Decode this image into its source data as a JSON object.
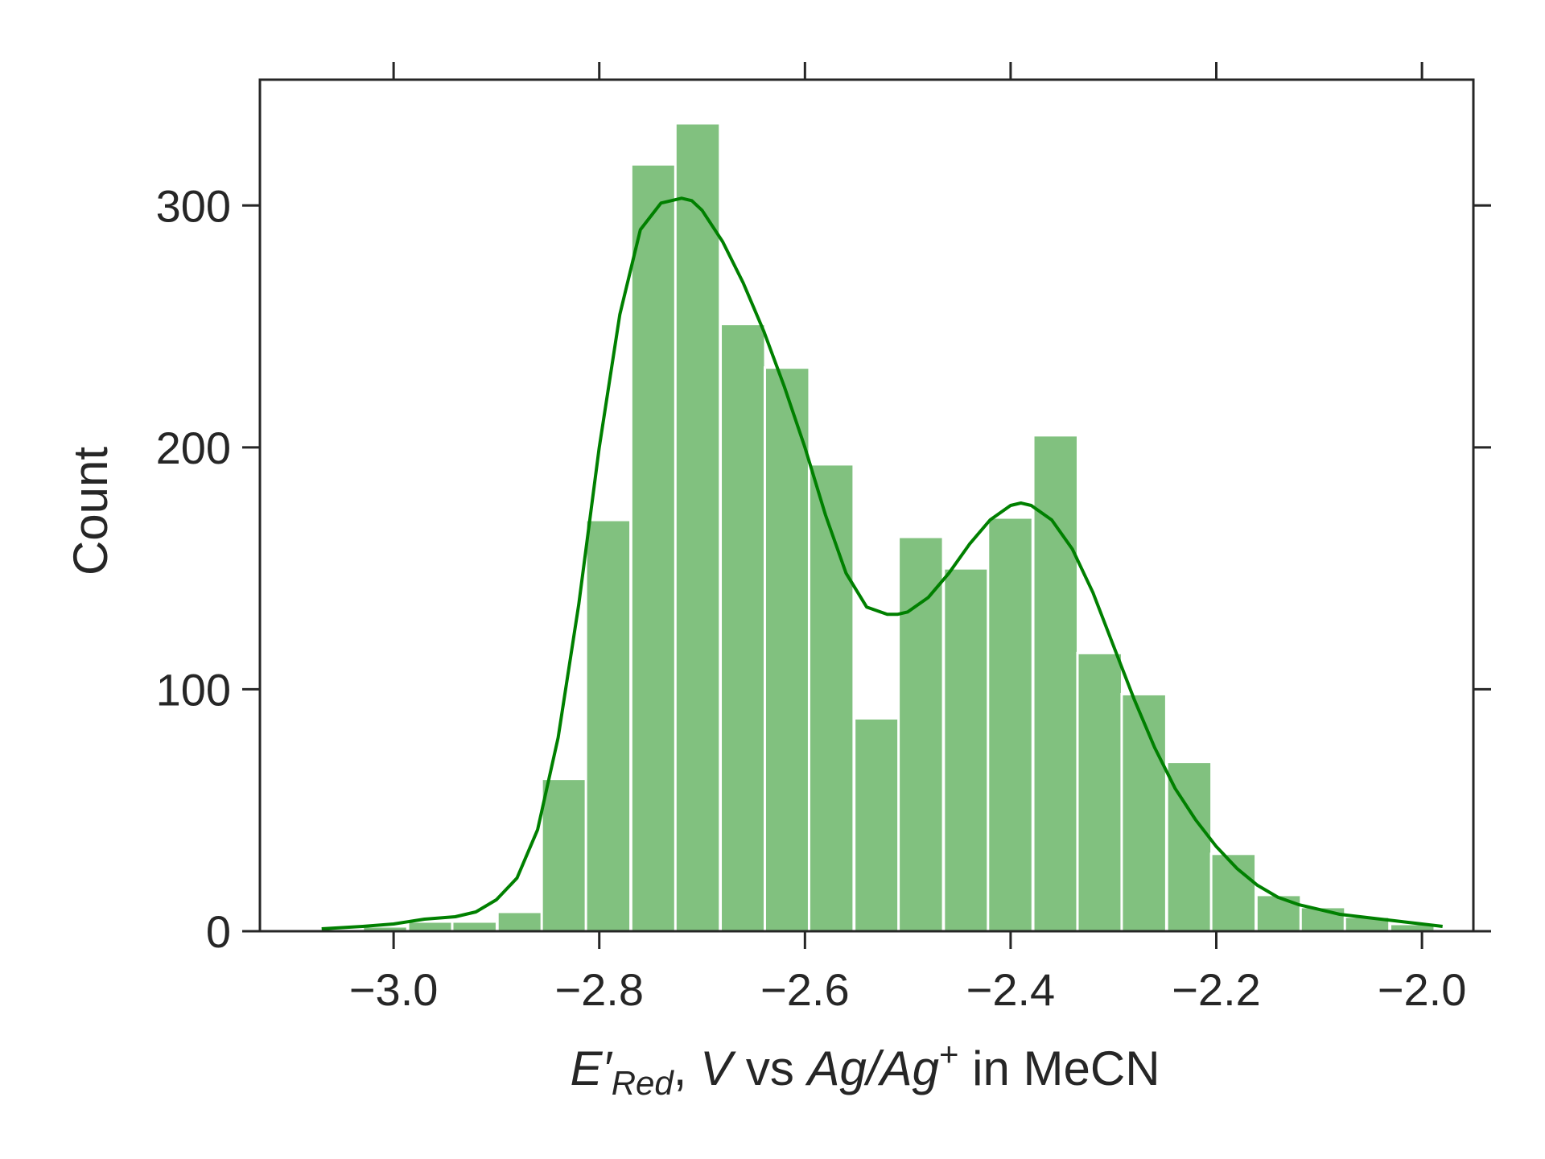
{
  "chart_data": {
    "type": "bar",
    "subtype": "histogram-with-kde",
    "xlabel_parts": {
      "symbol": "E′",
      "subscript": "Red",
      "after_symbol": ", ",
      "unit": "V",
      "vs": " vs ",
      "ref1": "Ag",
      "slash": "/",
      "ref2": "Ag",
      "superscript": "+",
      "tail": " in MeCN"
    },
    "ylabel": "Count",
    "xlim": [
      -3.13,
      -1.95
    ],
    "ylim": [
      0,
      352
    ],
    "xticks": [
      -3.0,
      -2.8,
      -2.6,
      -2.4,
      -2.2,
      -2.0
    ],
    "xtick_labels": [
      "−3.0",
      "−2.8",
      "−2.6",
      "−2.4",
      "−2.2",
      "−2.0"
    ],
    "yticks": [
      0,
      100,
      200,
      300
    ],
    "ytick_labels": [
      "0",
      "100",
      "200",
      "300"
    ],
    "bin_width": 0.0434,
    "bins": [
      {
        "left": -3.073,
        "count": 1
      },
      {
        "left": -3.03,
        "count": 2
      },
      {
        "left": -2.986,
        "count": 4
      },
      {
        "left": -2.943,
        "count": 4
      },
      {
        "left": -2.899,
        "count": 8
      },
      {
        "left": -2.856,
        "count": 63
      },
      {
        "left": -2.813,
        "count": 170
      },
      {
        "left": -2.769,
        "count": 317
      },
      {
        "left": -2.726,
        "count": 334
      },
      {
        "left": -2.682,
        "count": 251
      },
      {
        "left": -2.639,
        "count": 233
      },
      {
        "left": -2.596,
        "count": 193
      },
      {
        "left": -2.552,
        "count": 88
      },
      {
        "left": -2.509,
        "count": 163
      },
      {
        "left": -2.465,
        "count": 150
      },
      {
        "left": -2.422,
        "count": 171
      },
      {
        "left": -2.378,
        "count": 205
      },
      {
        "left": -2.335,
        "count": 115
      },
      {
        "left": -2.292,
        "count": 98
      },
      {
        "left": -2.248,
        "count": 70
      },
      {
        "left": -2.205,
        "count": 32
      },
      {
        "left": -2.161,
        "count": 15
      },
      {
        "left": -2.118,
        "count": 10
      },
      {
        "left": -2.075,
        "count": 6
      },
      {
        "left": -2.031,
        "count": 3
      }
    ],
    "kde": {
      "name": "KDE",
      "x": [
        -3.07,
        -3.03,
        -3.0,
        -2.97,
        -2.94,
        -2.92,
        -2.9,
        -2.88,
        -2.86,
        -2.84,
        -2.82,
        -2.8,
        -2.78,
        -2.76,
        -2.74,
        -2.72,
        -2.71,
        -2.7,
        -2.68,
        -2.66,
        -2.64,
        -2.62,
        -2.6,
        -2.58,
        -2.56,
        -2.54,
        -2.52,
        -2.51,
        -2.5,
        -2.48,
        -2.46,
        -2.44,
        -2.42,
        -2.4,
        -2.39,
        -2.38,
        -2.36,
        -2.34,
        -2.32,
        -2.3,
        -2.28,
        -2.26,
        -2.24,
        -2.22,
        -2.2,
        -2.18,
        -2.16,
        -2.14,
        -2.12,
        -2.1,
        -2.08,
        -2.06,
        -2.04,
        -2.02,
        -2.0,
        -1.98
      ],
      "y": [
        1,
        2,
        3,
        5,
        6,
        8,
        13,
        22,
        42,
        80,
        135,
        200,
        255,
        290,
        301,
        303,
        302,
        298,
        285,
        268,
        248,
        225,
        200,
        172,
        148,
        134,
        131,
        131,
        132,
        138,
        148,
        160,
        170,
        176,
        177,
        176,
        170,
        158,
        140,
        118,
        96,
        76,
        59,
        46,
        35,
        26,
        19,
        14,
        11,
        9,
        7,
        6,
        5,
        4,
        3,
        2
      ]
    },
    "grid": false,
    "legend": "none",
    "colors": {
      "bars": "#81c17f",
      "kde": "#008000",
      "axes": "#262626",
      "background": "#ffffff"
    }
  }
}
